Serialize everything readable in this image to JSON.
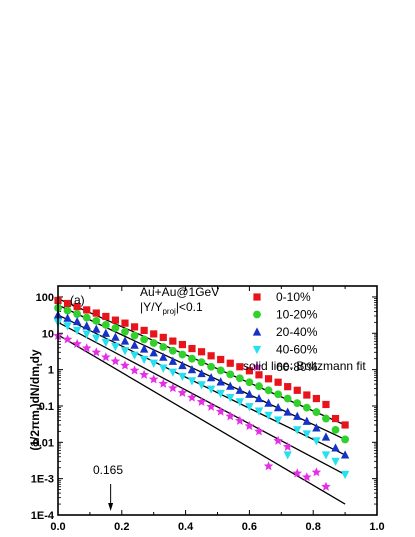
{
  "chart_data": {
    "type": "scatter",
    "panel_label": "(a)",
    "annotations": {
      "system": "Au+Au@1GeV",
      "cut_main": "|Y/Y",
      "cut_sub": "proj",
      "cut_tail": "|<0.1",
      "fit_note": "solid line: Boltzmann fit",
      "arrow_label": "0.165",
      "arrow_x": 0.165
    },
    "ylabel": "(1/2πm",
    "ylabel_sub": "t",
    "ylabel_mid": ")dN/dm",
    "ylabel_sub2": "t",
    "ylabel_tail": "dy",
    "xlim": [
      0.0,
      1.0
    ],
    "ylim": [
      0.0001,
      200
    ],
    "yscale": "log",
    "x_ticks": [
      0.0,
      0.2,
      0.4,
      0.6,
      0.8,
      1.0
    ],
    "x_tick_labels": [
      "0.0",
      "0.2",
      "0.4",
      "0.6",
      "0.8",
      "1.0"
    ],
    "y_ticks": [
      100,
      10,
      1,
      0.1,
      0.01,
      0.001,
      0.0001
    ],
    "y_tick_labels": [
      "100",
      "10",
      "1",
      "0.1",
      "0.01",
      "1E-3",
      "1E-4"
    ],
    "legend_position": "top-right",
    "series": [
      {
        "name": "0-10%",
        "marker": "square",
        "color": "#e8141c",
        "x": [
          0.0,
          0.03,
          0.06,
          0.09,
          0.12,
          0.15,
          0.18,
          0.21,
          0.24,
          0.27,
          0.3,
          0.33,
          0.36,
          0.39,
          0.42,
          0.45,
          0.48,
          0.51,
          0.54,
          0.57,
          0.6,
          0.63,
          0.66,
          0.69,
          0.72,
          0.75,
          0.78,
          0.81,
          0.84,
          0.87,
          0.9
        ],
        "y": [
          80,
          66,
          54,
          44,
          36,
          29,
          23,
          19,
          15,
          12,
          9.6,
          7.7,
          6.1,
          4.9,
          3.8,
          3.1,
          2.4,
          1.9,
          1.5,
          1.2,
          0.93,
          0.72,
          0.56,
          0.45,
          0.34,
          0.27,
          0.2,
          0.16,
          0.11,
          0.045,
          0.03
        ],
        "fit": [
          [
            0.0,
            90
          ],
          [
            0.9,
            0.03
          ]
        ]
      },
      {
        "name": "10-20%",
        "marker": "circle",
        "color": "#2fd12a",
        "x": [
          0.0,
          0.03,
          0.06,
          0.09,
          0.12,
          0.15,
          0.18,
          0.21,
          0.24,
          0.27,
          0.3,
          0.33,
          0.36,
          0.39,
          0.42,
          0.45,
          0.48,
          0.51,
          0.54,
          0.57,
          0.6,
          0.63,
          0.66,
          0.69,
          0.72,
          0.75,
          0.78,
          0.81,
          0.84,
          0.87,
          0.9
        ],
        "y": [
          50,
          42,
          34,
          27,
          22,
          17,
          14,
          11,
          8.6,
          6.8,
          5.4,
          4.2,
          3.3,
          2.6,
          2.0,
          1.6,
          1.2,
          0.95,
          0.74,
          0.58,
          0.45,
          0.35,
          0.27,
          0.21,
          0.16,
          0.12,
          0.09,
          0.068,
          0.045,
          0.022,
          0.012
        ],
        "fit": [
          [
            0.0,
            60
          ],
          [
            0.9,
            0.012
          ]
        ]
      },
      {
        "name": "20-40%",
        "marker": "triangle-up",
        "color": "#1431c8",
        "x": [
          0.0,
          0.03,
          0.06,
          0.09,
          0.12,
          0.15,
          0.18,
          0.21,
          0.24,
          0.27,
          0.3,
          0.33,
          0.36,
          0.39,
          0.42,
          0.45,
          0.48,
          0.51,
          0.54,
          0.57,
          0.6,
          0.63,
          0.66,
          0.69,
          0.72,
          0.75,
          0.78,
          0.81,
          0.84,
          0.87,
          0.9
        ],
        "y": [
          32,
          26,
          21,
          16,
          13,
          10,
          7.8,
          6.1,
          4.7,
          3.7,
          2.9,
          2.2,
          1.7,
          1.3,
          1.0,
          0.78,
          0.6,
          0.46,
          0.35,
          0.27,
          0.21,
          0.16,
          0.12,
          0.09,
          0.068,
          0.052,
          0.038,
          0.025,
          0.014,
          0.007,
          0.0045
        ],
        "fit": [
          [
            0.0,
            32
          ],
          [
            0.9,
            0.0045
          ]
        ]
      },
      {
        "name": "40-60%",
        "marker": "triangle-down",
        "color": "#23e1f0",
        "x": [
          0.0,
          0.03,
          0.06,
          0.09,
          0.12,
          0.15,
          0.18,
          0.21,
          0.24,
          0.27,
          0.3,
          0.33,
          0.36,
          0.39,
          0.42,
          0.45,
          0.48,
          0.51,
          0.54,
          0.57,
          0.6,
          0.63,
          0.66,
          0.69,
          0.72,
          0.75,
          0.78,
          0.81,
          0.84,
          0.87,
          0.9
        ],
        "y": [
          20,
          16,
          12,
          9.5,
          7.3,
          5.6,
          4.3,
          3.3,
          2.5,
          1.9,
          1.5,
          1.1,
          0.85,
          0.65,
          0.49,
          0.38,
          0.29,
          0.22,
          0.17,
          0.13,
          0.095,
          0.072,
          0.055,
          0.041,
          0.0045,
          0.022,
          0.017,
          0.011,
          0.0045,
          0.003,
          0.0013
        ],
        "fit": [
          [
            0.0,
            20
          ],
          [
            0.9,
            0.0013
          ]
        ]
      },
      {
        "name": "60-80%",
        "marker": "star",
        "color": "#e62ee6",
        "x": [
          0.0,
          0.03,
          0.06,
          0.09,
          0.12,
          0.15,
          0.18,
          0.21,
          0.24,
          0.27,
          0.3,
          0.33,
          0.36,
          0.39,
          0.42,
          0.45,
          0.48,
          0.51,
          0.54,
          0.57,
          0.6,
          0.63,
          0.66,
          0.69,
          0.72,
          0.75,
          0.78,
          0.81,
          0.84
        ],
        "y": [
          8.5,
          6.8,
          5.1,
          3.9,
          3.0,
          2.2,
          1.7,
          1.3,
          0.95,
          0.72,
          0.54,
          0.41,
          0.31,
          0.23,
          0.17,
          0.13,
          0.095,
          0.07,
          0.052,
          0.039,
          0.028,
          0.02,
          0.0022,
          0.011,
          0.0075,
          0.0014,
          0.0011,
          0.0015,
          0.0006
        ],
        "fit": [
          [
            0.0,
            9
          ],
          [
            0.9,
            0.0002
          ]
        ]
      }
    ]
  }
}
